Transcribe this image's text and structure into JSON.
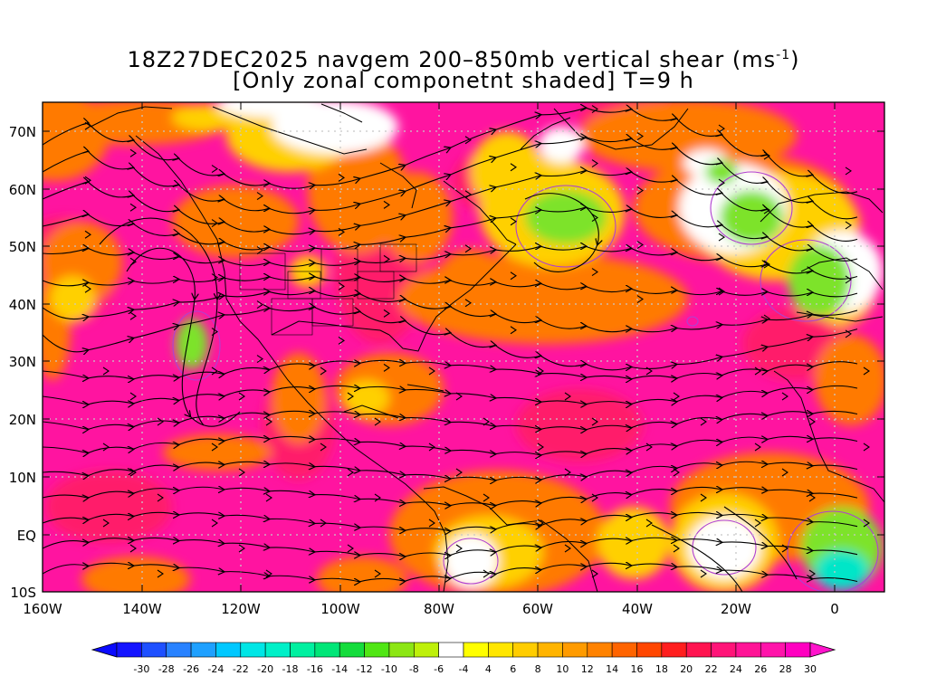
{
  "title": {
    "line1": "18Z27DEC2025 navgem 200–850mb vertical shear (ms",
    "line1_sup": "-1",
    "line1_end": ")",
    "line2": "[Only zonal componetnt shaded] T=9 h"
  },
  "lat_labels": [
    "70N",
    "60N",
    "50N",
    "40N",
    "30N",
    "20N",
    "10N",
    "EQ",
    "10S"
  ],
  "lon_labels": [
    "160W",
    "140W",
    "120W",
    "100W",
    "80W",
    "60W",
    "40W",
    "20W",
    "0"
  ],
  "colorbar": {
    "labels": [
      "-30",
      "-28",
      "-26",
      "-24",
      "-22",
      "-20",
      "-18",
      "-16",
      "-14",
      "-12",
      "-10",
      "-8",
      "-6",
      "-4",
      "4",
      "6",
      "8",
      "10",
      "12",
      "14",
      "16",
      "18",
      "20",
      "22",
      "24",
      "26",
      "28",
      "30"
    ],
    "colors": [
      "#1414ff",
      "#1e50ff",
      "#2882ff",
      "#1ea0ff",
      "#00c8ff",
      "#00e6e6",
      "#00f0c8",
      "#00f0a0",
      "#00e678",
      "#14dc3c",
      "#50e614",
      "#8ce614",
      "#bef00a",
      "#ffffff",
      "#ffff00",
      "#ffe600",
      "#ffcd00",
      "#ffb400",
      "#ff9b00",
      "#ff8200",
      "#ff6400",
      "#ff4600",
      "#ff1e1e",
      "#ff1450",
      "#ff1478",
      "#ff1496",
      "#ff14aa",
      "#ff00c0"
    ],
    "low_arrow_color": "#0a0aff",
    "high_arrow_color": "#ff14cc"
  },
  "map_colors": {
    "base": "#ff14a0",
    "strong": "#ff1f6a",
    "moderate": "#ff7a00",
    "weak": "#ffd000",
    "calm": "#ffffff",
    "easterly": "#7de32a",
    "easterly_strong": "#00e6c8",
    "streamline": "#000000",
    "coast": "#000000",
    "contour": "#b040d0"
  }
}
